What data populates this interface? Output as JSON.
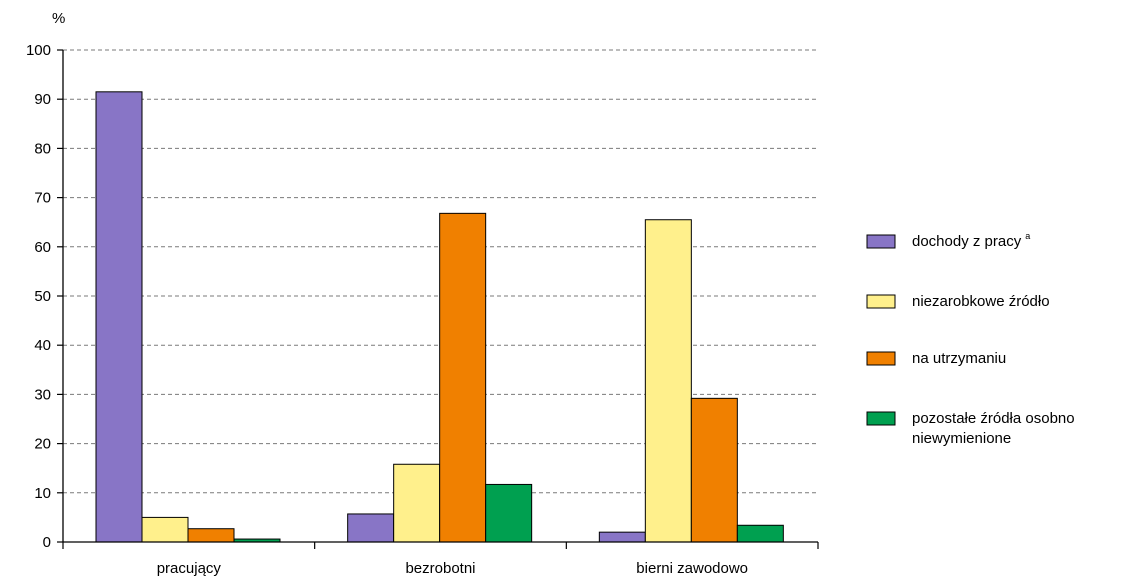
{
  "chart_data": {
    "type": "bar",
    "title": "",
    "xlabel": "",
    "ylabel": "%",
    "ylim": [
      0,
      100
    ],
    "yticks": [
      0,
      10,
      20,
      30,
      40,
      50,
      60,
      70,
      80,
      90,
      100
    ],
    "grid": true,
    "legend_position": "right",
    "categories": [
      "pracujący",
      "bezrobotni",
      "bierni zawodowo"
    ],
    "series": [
      {
        "name": "dochody z pracy",
        "name_sup": "a",
        "color": "#8875C6",
        "values": [
          91.5,
          5.7,
          2.0
        ]
      },
      {
        "name": "niezarobkowe źródło",
        "color": "#FFF08C",
        "values": [
          5.0,
          15.8,
          65.5
        ]
      },
      {
        "name": "na utrzymaniu",
        "color": "#F08000",
        "values": [
          2.7,
          66.8,
          29.2
        ]
      },
      {
        "name": "pozostałe źródła osobno niewymienione",
        "name_lines": [
          "pozostałe źródła osobno",
          "niewymienione"
        ],
        "color": "#00A050",
        "values": [
          0.6,
          11.7,
          3.4
        ]
      }
    ]
  }
}
